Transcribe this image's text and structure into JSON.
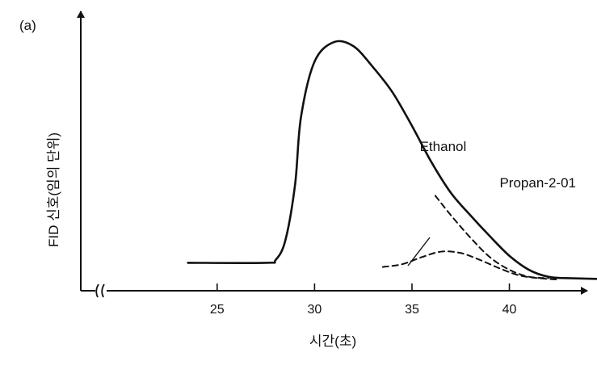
{
  "panel_label": "(a)",
  "colors": {
    "ink": "#111111",
    "background": "#ffffff"
  },
  "chart_data": {
    "type": "line",
    "title": "",
    "xlabel": "시간(초)",
    "ylabel": "FID 신호(임의 단위)",
    "x_ticks": [
      25,
      30,
      35,
      40
    ],
    "x_tick_labels": [
      "25",
      "30",
      "35",
      "40"
    ],
    "xlim": [
      18,
      44
    ],
    "ylim": [
      0,
      100
    ],
    "axis_break": true,
    "grid": false,
    "legend": "none",
    "annotations": [
      {
        "text": "Ethanol",
        "x": 35.4,
        "y": 50
      },
      {
        "text": "Propan-2-01",
        "x": 39.5,
        "y": 37
      }
    ],
    "series": [
      {
        "style": "solid",
        "x": [
          23.5,
          27.5,
          28.0,
          28.5,
          29.0,
          29.3,
          30.0,
          31.0,
          32.0,
          33.0,
          34.0,
          35.0,
          36.0,
          37.0,
          38.0,
          39.0,
          40.0,
          41.0,
          42.0,
          43.0,
          46.0
        ],
        "y": [
          10.0,
          10.0,
          11.0,
          18.0,
          38.0,
          62.0,
          82.0,
          89.0,
          87.5,
          80.0,
          71.0,
          59.0,
          46.0,
          35.0,
          27.0,
          19.5,
          12.5,
          7.5,
          5.0,
          4.5,
          4.0
        ]
      },
      {
        "name": "Ethanol",
        "style": "dashed",
        "x": [
          36.2,
          37.0,
          38.0,
          39.0,
          40.0,
          41.0,
          42.0
        ],
        "y": [
          34.0,
          27.0,
          19.0,
          12.0,
          7.5,
          5.0,
          4.5
        ]
      },
      {
        "name": "Propan-2-01",
        "style": "dashed",
        "x": [
          33.5,
          34.5,
          35.5,
          36.5,
          37.5,
          38.5,
          39.5,
          40.5,
          41.5,
          42.5
        ],
        "y": [
          8.5,
          9.5,
          12.0,
          14.0,
          13.5,
          11.0,
          8.0,
          5.5,
          4.5,
          4.0
        ]
      }
    ]
  }
}
